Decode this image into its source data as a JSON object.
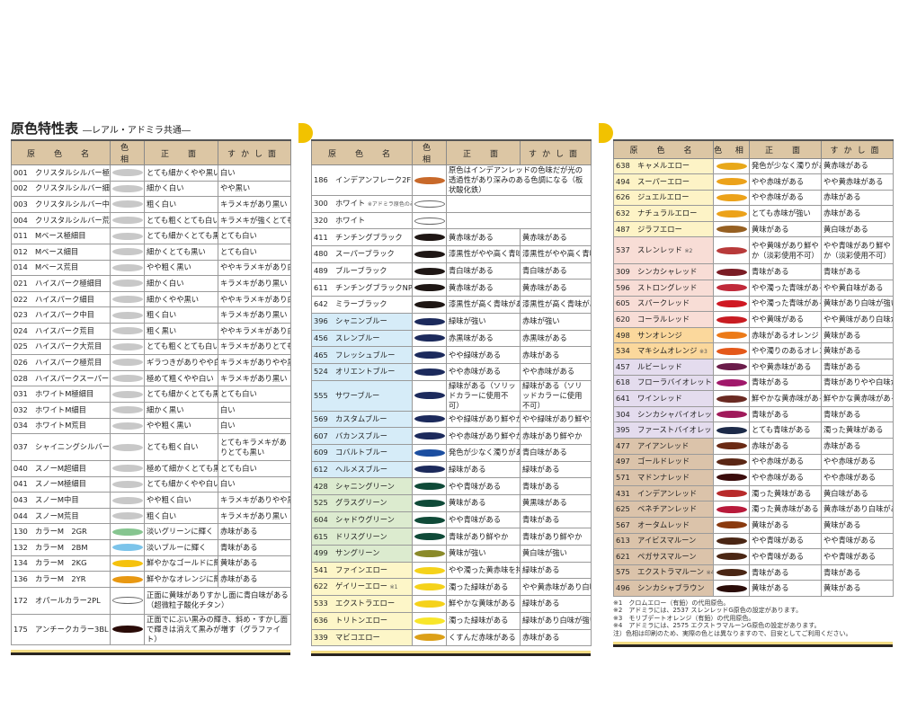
{
  "title": "原色特性表",
  "subtitle": "―レアル・アドミラ共通―",
  "headers": {
    "name": "原　色　名",
    "hue": "色 相",
    "front": "正　面",
    "back": "すかし面"
  },
  "tables": [
    [
      {
        "code": "001",
        "name": "クリスタルシルバー極細目",
        "color": "#c8c8c8",
        "front": "とても細かくやや黒い",
        "back": "白い"
      },
      {
        "code": "002",
        "name": "クリスタルシルバー細目",
        "color": "#c8c8c8",
        "front": "細かく白い",
        "back": "やや黒い"
      },
      {
        "code": "003",
        "name": "クリスタルシルバー中目",
        "color": "#c8c8c8",
        "front": "粗く白い",
        "back": "キラメキがあり黒い"
      },
      {
        "code": "004",
        "name": "クリスタルシルバー荒目",
        "color": "#c8c8c8",
        "front": "とても粗くとても白い",
        "back": "キラメキが強くとても黒い"
      },
      {
        "code": "011",
        "name": "Mベース極細目",
        "color": "#c8c8c8",
        "front": "とても細かくとても黒い",
        "back": "とても白い"
      },
      {
        "code": "012",
        "name": "Mベース細目",
        "color": "#c8c8c8",
        "front": "細かくとても黒い",
        "back": "とても白い"
      },
      {
        "code": "014",
        "name": "Mベース荒目",
        "color": "#c8c8c8",
        "front": "やや粗く黒い",
        "back": "ややキラメキがあり白い"
      },
      {
        "code": "021",
        "name": "ハイスパーク極細目",
        "color": "#c8c8c8",
        "front": "細かく白い",
        "back": "キラメキがあり黒い"
      },
      {
        "code": "022",
        "name": "ハイスパーク細目",
        "color": "#c8c8c8",
        "front": "細かくやや黒い",
        "back": "ややキラメキがあり白い"
      },
      {
        "code": "023",
        "name": "ハイスパーク中目",
        "color": "#c8c8c8",
        "front": "粗く白い",
        "back": "キラメキがあり黒い"
      },
      {
        "code": "024",
        "name": "ハイスパーク荒目",
        "color": "#c8c8c8",
        "front": "粗く黒い",
        "back": "ややキラメキがあり白い"
      },
      {
        "code": "025",
        "name": "ハイスパーク大荒目",
        "color": "#c8c8c8",
        "front": "とても粗くとても白い",
        "back": "キラメキがありとても黒い"
      },
      {
        "code": "026",
        "name": "ハイスパーク極荒目",
        "color": "#c8c8c8",
        "front": "ギラつきがありやや白い",
        "back": "キラメキがありやや黒い"
      },
      {
        "code": "028",
        "name": "ハイスパークスーパーグラマー",
        "color": "#c8c8c8",
        "front": "極めて粗くやや白い",
        "back": "キラメキがあり黒い"
      },
      {
        "code": "031",
        "name": "ホワイトM極細目",
        "color": "#c8c8c8",
        "front": "とても細かくとても黒い",
        "back": "とても白い"
      },
      {
        "code": "032",
        "name": "ホワイトM細目",
        "color": "#c8c8c8",
        "front": "細かく黒い",
        "back": "白い"
      },
      {
        "code": "034",
        "name": "ホワイトM荒目",
        "color": "#c8c8c8",
        "front": "やや粗く黒い",
        "back": "白い"
      },
      {
        "code": "037",
        "name": "シャイニングシルバー荒目",
        "color": "#c8c8c8",
        "front": "とても粗く白い",
        "back": "とてもキラメキがありとても黒い",
        "tall": true
      },
      {
        "code": "040",
        "name": "スノーM超細目",
        "color": "#c8c8c8",
        "front": "極めて細かくとても黒い",
        "back": "とても白い"
      },
      {
        "code": "041",
        "name": "スノーM極細目",
        "color": "#c8c8c8",
        "front": "とても細かくやや白い",
        "back": "白い"
      },
      {
        "code": "043",
        "name": "スノーM中目",
        "color": "#c8c8c8",
        "front": "やや粗く白い",
        "back": "キラメキがありやや黒い"
      },
      {
        "code": "044",
        "name": "スノーM荒目",
        "color": "#c8c8c8",
        "front": "粗く白い",
        "back": "キラメキがあり黒い"
      },
      {
        "code": "130",
        "name": "カラーM　2GR",
        "color": "#86c590",
        "front": "淡いグリーンに輝く",
        "back": "赤味がある"
      },
      {
        "code": "132",
        "name": "カラーM　2BM",
        "color": "#7cc4ea",
        "front": "淡いブルーに輝く",
        "back": "青味がある"
      },
      {
        "code": "134",
        "name": "カラーM　2KG",
        "color": "#f5c20e",
        "front": "鮮やかなゴールドに輝く",
        "back": "黄味がある"
      },
      {
        "code": "136",
        "name": "カラーM　2YR",
        "color": "#e89812",
        "front": "鮮やかなオレンジに輝く",
        "back": "赤味がある"
      },
      {
        "code": "172",
        "name": "オパールカラー2PL",
        "color": "#ffffff",
        "description": "正面に黄味がありすかし面に青白味がある（超微粒子酸化チタン）"
      },
      {
        "code": "175",
        "name": "アンチークカラー3BL",
        "color": "#2a0c08",
        "description": "正面でにぶい黒みの輝き、斜め・すかし面で輝きは消えて黒みが増す（グラファイト）"
      }
    ],
    [
      {
        "code": "186",
        "name": "インデアンフレーク2FE",
        "color": "#c8692a",
        "description": "原色はインデアンレッドの色味だが光の透過性があり深みのある色調になる（板状酸化鉄）"
      },
      {
        "code": "300",
        "name": "ホワイト",
        "note": "※アドミラ原色のみ",
        "color": "#ffffff",
        "description": ""
      },
      {
        "code": "320",
        "name": "ホワイト",
        "color": "#ffffff",
        "description": ""
      },
      {
        "code": "411",
        "name": "チンチングブラック",
        "color": "#1e1614",
        "front": "黄赤味がある",
        "back": "黄赤味がある"
      },
      {
        "code": "480",
        "name": "スーパーブラック",
        "color": "#1e1614",
        "front": "漆黒性がやや高く青味",
        "back": "漆黒性がやや高く青味"
      },
      {
        "code": "489",
        "name": "ブルーブラック",
        "color": "#1e1614",
        "front": "青白味がある",
        "back": "青白味がある"
      },
      {
        "code": "611",
        "name": "チンチングブラックNP",
        "color": "#1e1614",
        "front": "黄赤味がある",
        "back": "黄赤味がある"
      },
      {
        "code": "642",
        "name": "ミラーブラック",
        "color": "#1e1614",
        "front": "漆黒性が高く青味がある",
        "back": "漆黒性が高く青味がある"
      },
      {
        "code": "396",
        "name": "シャニンブルー",
        "color": "#1c2a5c",
        "bg": "#d6ecf8",
        "front": "緑味が強い",
        "back": "赤味が強い"
      },
      {
        "code": "456",
        "name": "スレンブルー",
        "color": "#1c2a5c",
        "bg": "#d6ecf8",
        "front": "赤黒味がある",
        "back": "赤黒味がある"
      },
      {
        "code": "465",
        "name": "フレッシュブルー",
        "color": "#1c2a5c",
        "bg": "#d6ecf8",
        "front": "やや緑味がある",
        "back": "赤味がある"
      },
      {
        "code": "524",
        "name": "オリエントブルー",
        "color": "#1c2a5c",
        "bg": "#d6ecf8",
        "front": "やや赤味がある",
        "back": "やや赤味がある"
      },
      {
        "code": "555",
        "name": "サワーブルー",
        "color": "#1c2a5c",
        "bg": "#d6ecf8",
        "front": "緑味がある（ソリッドカラーに使用不可）",
        "back": "緑味がある（ソリッドカラーに使用不可）",
        "tall": true
      },
      {
        "code": "569",
        "name": "カスタムブルー",
        "color": "#1c2a5c",
        "bg": "#d6ecf8",
        "front": "やや緑味があり鮮やか",
        "back": "やや緑味があり鮮やか"
      },
      {
        "code": "607",
        "name": "バカンスブルー",
        "color": "#1c2a5c",
        "bg": "#d6ecf8",
        "front": "やや赤味があり鮮やか",
        "back": "赤味があり鮮やか"
      },
      {
        "code": "609",
        "name": "コバルトブルー",
        "color": "#1b4ea0",
        "bg": "#d6ecf8",
        "front": "発色が少なく濁りがある",
        "back": "青白味がある"
      },
      {
        "code": "612",
        "name": "ヘルメスブルー",
        "color": "#1c2a5c",
        "bg": "#d6ecf8",
        "front": "緑味がある",
        "back": "緑味がある"
      },
      {
        "code": "428",
        "name": "シャニングリーン",
        "color": "#0f4a38",
        "bg": "#dcebcf",
        "front": "やや青味がある",
        "back": "青味がある"
      },
      {
        "code": "525",
        "name": "グラスグリーン",
        "color": "#0f4a38",
        "bg": "#dcebcf",
        "front": "黄味がある",
        "back": "黄黒味がある"
      },
      {
        "code": "604",
        "name": "シャドウグリーン",
        "color": "#0f4a38",
        "bg": "#dcebcf",
        "front": "やや青味がある",
        "back": "青味がある"
      },
      {
        "code": "615",
        "name": "ドリスグリーン",
        "color": "#0f4a38",
        "bg": "#dcebcf",
        "front": "青味があり鮮やか",
        "back": "青味があり鮮やか"
      },
      {
        "code": "499",
        "name": "サングリーン",
        "color": "#8a8a2a",
        "bg": "#dcebcf",
        "front": "黄味が強い",
        "back": "黄白味が強い"
      },
      {
        "code": "541",
        "name": "ファインエロー",
        "color": "#f5d21a",
        "bg": "#fdf6c8",
        "front": "やや濁った黄赤味を持つ",
        "back": "緑味がある"
      },
      {
        "code": "622",
        "name": "ゲイリーエロー",
        "note": "※1",
        "color": "#f5d21a",
        "bg": "#fdf6c8",
        "front": "濁った緑味がある",
        "back": "やや黄赤味があり白味が強い"
      },
      {
        "code": "533",
        "name": "エクストラエロー",
        "color": "#f5d21a",
        "bg": "#fdf6c8",
        "front": "鮮やかな黄味がある",
        "back": "緑味がある"
      },
      {
        "code": "636",
        "name": "トリトンエロー",
        "color": "#f8e62a",
        "bg": "#fdf6c8",
        "front": "濁った緑味がある",
        "back": "緑味があり白味が強い"
      },
      {
        "code": "339",
        "name": "マビコエロー",
        "color": "#dca018",
        "bg": "#fdf6c8",
        "front": "くすんだ赤味がある",
        "back": "赤味がある"
      }
    ],
    [
      {
        "code": "638",
        "name": "キャメルエロー",
        "color": "#e8a81a",
        "bg": "#fdf3c6",
        "front": "発色が少なく濁りがある",
        "back": "黄赤味がある"
      },
      {
        "code": "494",
        "name": "スーパーエロー",
        "color": "#eca21a",
        "bg": "#fdf3c6",
        "front": "やや赤味がある",
        "back": "やや黄赤味がある"
      },
      {
        "code": "626",
        "name": "ジュエルエロー",
        "color": "#eca21a",
        "bg": "#fdf3c6",
        "front": "やや赤味がある",
        "back": "赤味がある"
      },
      {
        "code": "632",
        "name": "ナチュラルエロー",
        "color": "#eca21a",
        "bg": "#fdf3c6",
        "front": "とても赤味が強い",
        "back": "赤味がある"
      },
      {
        "code": "487",
        "name": "ジラフエロー",
        "color": "#966022",
        "bg": "#fdf3c6",
        "front": "黄味がある",
        "back": "黄白味がある"
      },
      {
        "code": "537",
        "name": "スレンレッド",
        "note": "※2",
        "color": "#b83a3a",
        "bg": "#f8ddd6",
        "front": "やや黄味があり鮮やか（淡彩使用不可）",
        "back": "やや青味があり鮮やか（淡彩使用不可）",
        "tall": true
      },
      {
        "code": "309",
        "name": "シンカシャレッド",
        "color": "#7a1c24",
        "bg": "#f8ddd6",
        "front": "青味がある",
        "back": "青味がある"
      },
      {
        "code": "596",
        "name": "ストロングレッド",
        "color": "#c02a3a",
        "bg": "#f8ddd6",
        "front": "やや濁った青味がある",
        "back": "やや黄白味がある"
      },
      {
        "code": "605",
        "name": "スパークレッド",
        "color": "#d01822",
        "bg": "#f8ddd6",
        "front": "やや濁った青味がある",
        "back": "黄味があり白味が強い"
      },
      {
        "code": "620",
        "name": "コーラルレッド",
        "color": "#c81c22",
        "bg": "#f8ddd6",
        "front": "やや黄味がある",
        "back": "やや黄味があり白味が強い"
      },
      {
        "code": "498",
        "name": "サンオレンジ",
        "color": "#ec7a18",
        "bg": "#fbd89c",
        "front": "赤味があるオレンジ",
        "back": "黄味がある"
      },
      {
        "code": "534",
        "name": "マキシムオレンジ",
        "note": "※3",
        "color": "#e4581a",
        "bg": "#fbd89c",
        "front": "やや濁りのあるオレンジ",
        "back": "黄味がある"
      },
      {
        "code": "457",
        "name": "ルビーレッド",
        "color": "#6a1c4a",
        "bg": "#e4dcee",
        "front": "やや黄赤味がある",
        "back": "青味がある"
      },
      {
        "code": "618",
        "name": "フローラバイオレット",
        "color": "#a0186a",
        "bg": "#e4dcee",
        "front": "青味がある",
        "back": "青味がありやや白味がある"
      },
      {
        "code": "641",
        "name": "ワインレッド",
        "color": "#6a2a22",
        "bg": "#e4dcee",
        "front": "鮮やかな黄赤味がある",
        "back": "鮮やかな黄赤味がある"
      },
      {
        "code": "304",
        "name": "シンカシャバイオレット",
        "color": "#a01a5a",
        "bg": "#e4dcee",
        "front": "青味がある",
        "back": "青味がある"
      },
      {
        "code": "395",
        "name": "ファーストバイオレット",
        "color": "#1c2a48",
        "bg": "#e4dcee",
        "front": "とても青味がある",
        "back": "濁った黄味がある"
      },
      {
        "code": "477",
        "name": "アイアンレッド",
        "color": "#6a2a14",
        "bg": "#dbc3aa",
        "front": "赤味がある",
        "back": "赤味がある"
      },
      {
        "code": "497",
        "name": "ゴールドレッド",
        "color": "#5a2614",
        "bg": "#dbc3aa",
        "front": "やや赤味がある",
        "back": "やや赤味がある"
      },
      {
        "code": "571",
        "name": "マドンナレッド",
        "color": "#3a0c0c",
        "bg": "#dbc3aa",
        "front": "やや赤味がある",
        "back": "やや赤味がある"
      },
      {
        "code": "431",
        "name": "インデアンレッド",
        "color": "#b82a2a",
        "bg": "#dbc3aa",
        "front": "濁った黄味がある",
        "back": "黄白味がある"
      },
      {
        "code": "625",
        "name": "ベネチアンレッド",
        "color": "#b81a3a",
        "bg": "#dbc3aa",
        "front": "濁った黄赤味がある",
        "back": "黄赤味があり白味がある"
      },
      {
        "code": "567",
        "name": "オータムレッド",
        "color": "#8a3a0e",
        "bg": "#dbc3aa",
        "front": "黄味がある",
        "back": "黄味がある"
      },
      {
        "code": "613",
        "name": "アイビスマルーン",
        "color": "#4a2614",
        "bg": "#dbc3aa",
        "front": "やや青味がある",
        "back": "やや青味がある"
      },
      {
        "code": "621",
        "name": "ペガサスマルーン",
        "color": "#4a2614",
        "bg": "#dbc3aa",
        "front": "やや青味がある",
        "back": "やや青味がある"
      },
      {
        "code": "575",
        "name": "エクストラマルーン",
        "note": "※4",
        "color": "#4a2614",
        "bg": "#dbc3aa",
        "front": "青味がある",
        "back": "青味がある"
      },
      {
        "code": "496",
        "name": "シンカシャブラウン",
        "color": "#2a0c08",
        "bg": "#dbc3aa",
        "front": "黄味がある",
        "back": "黄味がある"
      }
    ]
  ],
  "footnotes": [
    "※1　クロムエロー（有鉛）の代用原色。",
    "※2　アドミラには、2537 スレンレッドG原色の設定があります。",
    "※3　モリブデートオレンジ（有鉛）の代用原色。",
    "※4　アドミラには、2575 エクストラマルーンG原色の設定があります。",
    "注）色相は印刷のため、実際の色とは異なりますので、目安としてご利用ください。"
  ]
}
